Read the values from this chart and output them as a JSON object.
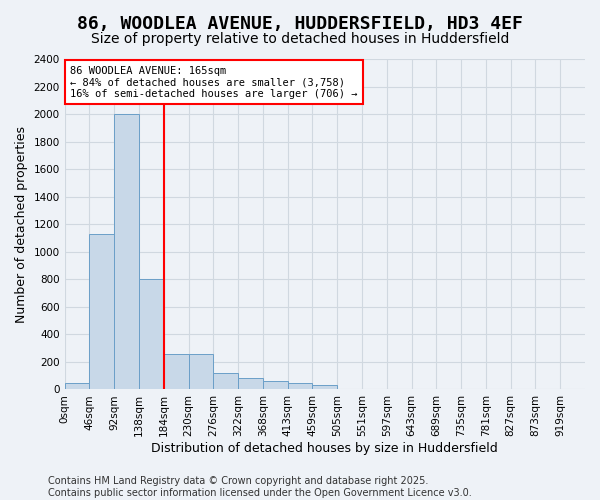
{
  "title": "86, WOODLEA AVENUE, HUDDERSFIELD, HD3 4EF",
  "subtitle": "Size of property relative to detached houses in Huddersfield",
  "xlabel": "Distribution of detached houses by size in Huddersfield",
  "ylabel": "Number of detached properties",
  "bin_labels": [
    "0sqm",
    "46sqm",
    "92sqm",
    "138sqm",
    "184sqm",
    "230sqm",
    "276sqm",
    "322sqm",
    "368sqm",
    "413sqm",
    "459sqm",
    "505sqm",
    "551sqm",
    "597sqm",
    "643sqm",
    "689sqm",
    "735sqm",
    "781sqm",
    "827sqm",
    "873sqm",
    "919sqm"
  ],
  "bar_values": [
    50,
    1130,
    2000,
    800,
    260,
    260,
    120,
    80,
    60,
    45,
    35,
    5,
    0,
    0,
    0,
    0,
    0,
    0,
    0,
    0,
    0
  ],
  "bar_color": "#c8d8e8",
  "bar_edge_color": "#6b9fc8",
  "grid_color": "#d0d8e0",
  "background_color": "#eef2f7",
  "property_bin_index": 3,
  "vline_color": "red",
  "annotation_text": "86 WOODLEA AVENUE: 165sqm\n← 84% of detached houses are smaller (3,758)\n16% of semi-detached houses are larger (706) →",
  "annotation_box_color": "white",
  "annotation_box_edge": "red",
  "ylim": [
    0,
    2400
  ],
  "yticks": [
    0,
    200,
    400,
    600,
    800,
    1000,
    1200,
    1400,
    1600,
    1800,
    2000,
    2200,
    2400
  ],
  "footer_text": "Contains HM Land Registry data © Crown copyright and database right 2025.\nContains public sector information licensed under the Open Government Licence v3.0.",
  "title_fontsize": 13,
  "subtitle_fontsize": 10,
  "xlabel_fontsize": 9,
  "ylabel_fontsize": 9,
  "tick_fontsize": 7.5,
  "footer_fontsize": 7
}
